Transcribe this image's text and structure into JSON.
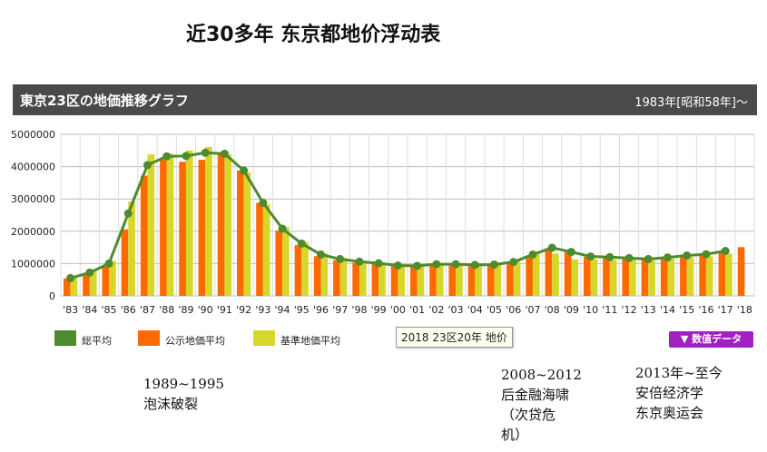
{
  "page_title": "近30多年 东京都地价浮动表",
  "header": {
    "title": "東京23区の地価推移グラフ",
    "period": "1983年[昭和58年]～"
  },
  "tooltip": "2018 23区20年 地价",
  "data_button": {
    "label": "▼ 数值データ"
  },
  "annotations": [
    {
      "lines": [
        "1989~1995",
        "泡沫破裂"
      ]
    },
    {
      "lines": [
        "2008~2012",
        "后金融海啸",
        "（次贷危",
        "机）"
      ]
    },
    {
      "lines": [
        "2013年~至今",
        "安倍经济学",
        "东京奥运会"
      ]
    }
  ],
  "colors": {
    "total": "#4e8a2e",
    "public": "#ff6a00",
    "standard": "#d7d72a",
    "header_bg": "#4a4a4a",
    "button": "#a020c0"
  },
  "chart_data": {
    "type": "bar",
    "categories": [
      "'83",
      "'84",
      "'85",
      "'86",
      "'87",
      "'88",
      "'89",
      "'90",
      "'91",
      "'92",
      "'93",
      "'94",
      "'95",
      "'96",
      "'97",
      "'98",
      "'99",
      "'00",
      "'01",
      "'02",
      "'03",
      "'04",
      "'05",
      "'06",
      "'07",
      "'08",
      "'09",
      "'10",
      "'11",
      "'12",
      "'13",
      "'14",
      "'15",
      "'16",
      "'17",
      "'18"
    ],
    "ylim": [
      0,
      5000000
    ],
    "yticks": [
      "0",
      "1000000",
      "2000000",
      "3000000",
      "4000000",
      "5000000"
    ],
    "grid": true,
    "legend_position": "bottom-left",
    "series": [
      {
        "name": "総平均",
        "kind": "line",
        "values": [
          550000,
          720000,
          1000000,
          2550000,
          4050000,
          4320000,
          4330000,
          4430000,
          4400000,
          3880000,
          2880000,
          2080000,
          1620000,
          1280000,
          1140000,
          1060000,
          1010000,
          940000,
          930000,
          980000,
          980000,
          960000,
          970000,
          1050000,
          1280000,
          1490000,
          1360000,
          1220000,
          1200000,
          1170000,
          1140000,
          1190000,
          1250000,
          1290000,
          1390000,
          null
        ]
      },
      {
        "name": "公示地価平均",
        "kind": "bar",
        "values": [
          540000,
          670000,
          900000,
          2060000,
          3720000,
          4220000,
          4150000,
          4210000,
          4440000,
          3880000,
          2880000,
          2020000,
          1570000,
          1230000,
          1110000,
          1030000,
          990000,
          930000,
          920000,
          960000,
          960000,
          940000,
          950000,
          1020000,
          1250000,
          1470000,
          1350000,
          1210000,
          1190000,
          1150000,
          1130000,
          1170000,
          1230000,
          1280000,
          1360000,
          1510000
        ]
      },
      {
        "name": "基準地価平均",
        "kind": "bar",
        "values": [
          580000,
          760000,
          1080000,
          2920000,
          4380000,
          4400000,
          4500000,
          4610000,
          4390000,
          3820000,
          2830000,
          2130000,
          1660000,
          1320000,
          1170000,
          1090000,
          1010000,
          950000,
          940000,
          1000000,
          1000000,
          980000,
          990000,
          1080000,
          1310000,
          1310000,
          1130000,
          1140000,
          1120000,
          1120000,
          1100000,
          1150000,
          1200000,
          1230000,
          1310000,
          null
        ]
      }
    ]
  }
}
